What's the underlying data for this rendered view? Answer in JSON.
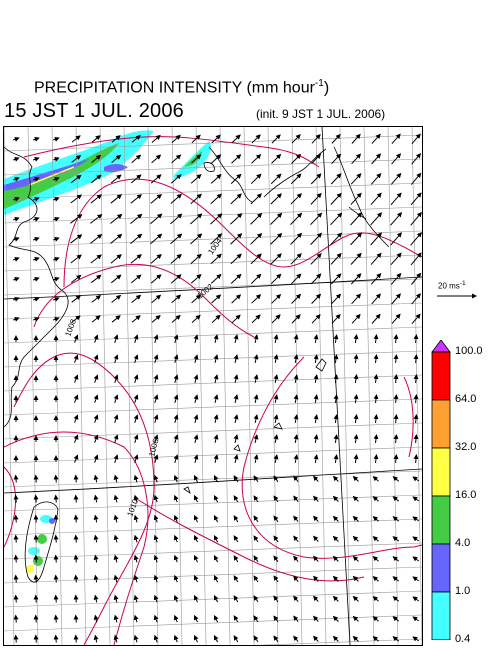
{
  "title": {
    "main": "PRECIPITATION INTENSITY (mm hour",
    "unit_exponent": "-1",
    "close": ")"
  },
  "valid_time": "15 JST 1 JUL. 2006",
  "init_time": "(init. 9 JST 1 JUL. 2006)",
  "reference_vector": {
    "label": "20 ms",
    "exponent": "-1"
  },
  "contour_labels": [
    "1004",
    "1002",
    "1006",
    "1008",
    "1010"
  ],
  "colorbar": {
    "levels": [
      "100.0",
      "64.0",
      "32.0",
      "16.0",
      "4.0",
      "1.0",
      "0.4"
    ],
    "colors": [
      "#ff0000",
      "#ffa033",
      "#ffff44",
      "#44cc44",
      "#6666ff",
      "#44ffff"
    ],
    "over_color": "#cc33ff",
    "under_color": "#ffffff"
  },
  "palette": {
    "isobar": "#cc0055",
    "grid": "#999999",
    "coast": "#000000"
  }
}
